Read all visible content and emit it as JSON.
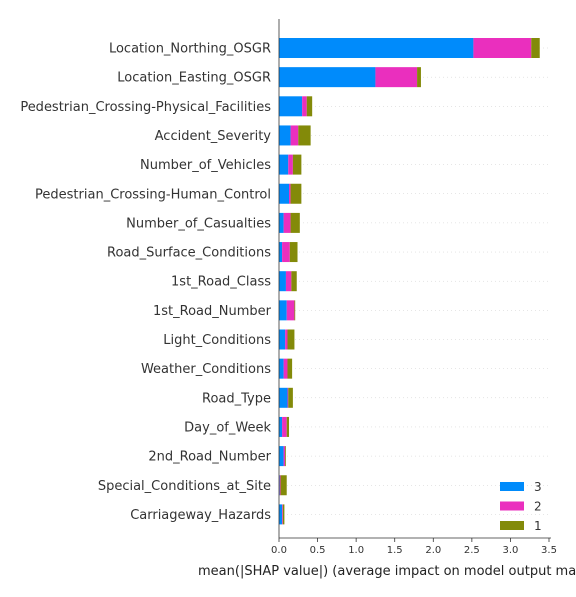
{
  "chart_data": {
    "type": "bar",
    "orientation": "horizontal",
    "stacked": true,
    "xlabel": "mean(|SHAP value|) (average impact on model output ma",
    "xlim": [
      0,
      3.5
    ],
    "xticks": [
      "0.0",
      "0.5",
      "1.0",
      "1.5",
      "2.0",
      "2.5",
      "3.0",
      "3.5"
    ],
    "categories": [
      "Location_Northing_OSGR",
      "Location_Easting_OSGR",
      "Pedestrian_Crossing-Physical_Facilities",
      "Accident_Severity",
      "Number_of_Vehicles",
      "Pedestrian_Crossing-Human_Control",
      "Number_of_Casualties",
      "Road_Surface_Conditions",
      "1st_Road_Class",
      "1st_Road_Number",
      "Light_Conditions",
      "Weather_Conditions",
      "Road_Type",
      "Day_of_Week",
      "2nd_Road_Number",
      "Special_Conditions_at_Site",
      "Carriageway_Hazards"
    ],
    "series": [
      {
        "name": "3",
        "color": "#008bfb",
        "values": [
          2.52,
          1.25,
          0.3,
          0.15,
          0.12,
          0.13,
          0.06,
          0.04,
          0.09,
          0.1,
          0.08,
          0.06,
          0.11,
          0.04,
          0.06,
          0.01,
          0.04
        ]
      },
      {
        "name": "2",
        "color": "#ea2fbe",
        "values": [
          0.75,
          0.54,
          0.06,
          0.1,
          0.06,
          0.02,
          0.09,
          0.1,
          0.07,
          0.1,
          0.03,
          0.05,
          0.01,
          0.06,
          0.02,
          0.01,
          0.01
        ]
      },
      {
        "name": "1",
        "color": "#838a09",
        "values": [
          0.11,
          0.05,
          0.07,
          0.16,
          0.11,
          0.14,
          0.12,
          0.1,
          0.07,
          0.01,
          0.09,
          0.06,
          0.06,
          0.03,
          0.01,
          0.08,
          0.02
        ]
      }
    ],
    "legend": {
      "placement": "lower-right",
      "order": [
        "3",
        "2",
        "1"
      ]
    }
  }
}
